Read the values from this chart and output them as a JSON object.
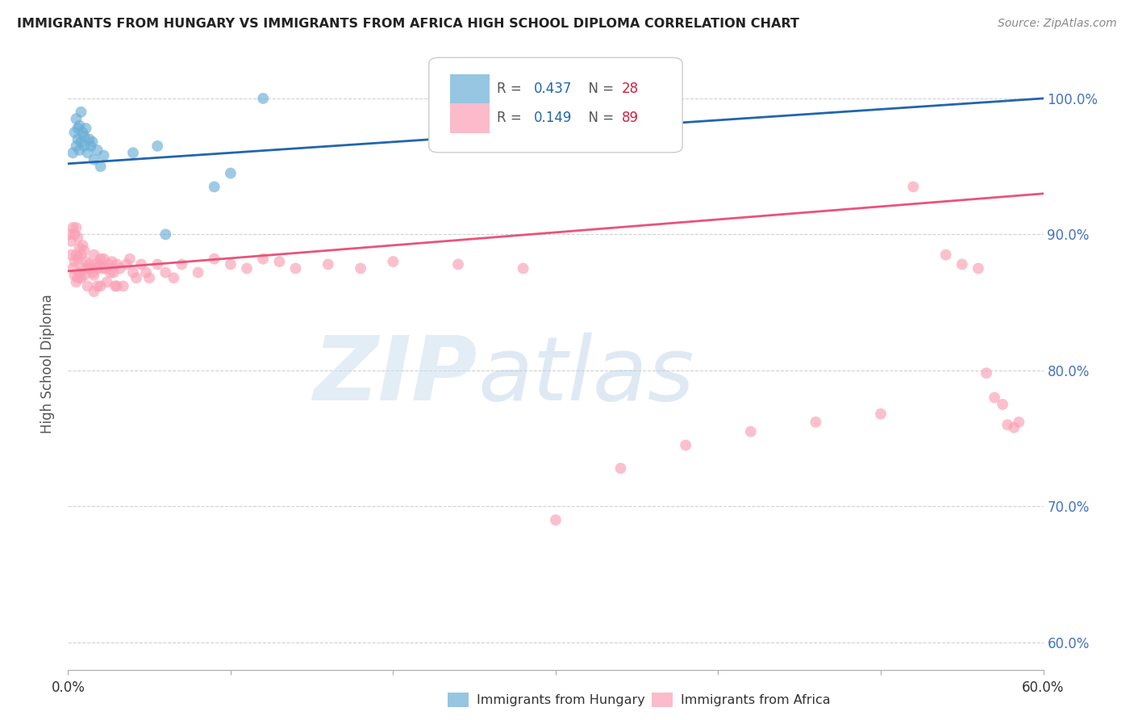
{
  "title": "IMMIGRANTS FROM HUNGARY VS IMMIGRANTS FROM AFRICA HIGH SCHOOL DIPLOMA CORRELATION CHART",
  "source": "Source: ZipAtlas.com",
  "ylabel": "High School Diploma",
  "ytick_labels": [
    "100.0%",
    "90.0%",
    "80.0%",
    "70.0%",
    "60.0%"
  ],
  "ytick_values": [
    1.0,
    0.9,
    0.8,
    0.7,
    0.6
  ],
  "xlim": [
    0.0,
    0.6
  ],
  "ylim": [
    0.58,
    1.03
  ],
  "legend_hungary_r": "0.437",
  "legend_hungary_n": "28",
  "legend_africa_r": "0.149",
  "legend_africa_n": "89",
  "hungary_color": "#6baed6",
  "africa_color": "#fa9fb5",
  "trend_hungary_color": "#2166ac",
  "trend_africa_color": "#e9537a",
  "background_color": "#ffffff",
  "grid_color": "#cccccc",
  "hungary_x": [
    0.003,
    0.004,
    0.005,
    0.005,
    0.006,
    0.006,
    0.007,
    0.007,
    0.008,
    0.008,
    0.009,
    0.01,
    0.01,
    0.011,
    0.012,
    0.013,
    0.014,
    0.015,
    0.016,
    0.018,
    0.02,
    0.022,
    0.04,
    0.055,
    0.06,
    0.09,
    0.1,
    0.12
  ],
  "hungary_y": [
    0.96,
    0.975,
    0.965,
    0.985,
    0.97,
    0.978,
    0.962,
    0.98,
    0.968,
    0.99,
    0.975,
    0.972,
    0.965,
    0.978,
    0.96,
    0.97,
    0.965,
    0.968,
    0.955,
    0.962,
    0.95,
    0.958,
    0.96,
    0.965,
    0.9,
    0.935,
    0.945,
    1.0
  ],
  "africa_x": [
    0.001,
    0.002,
    0.002,
    0.003,
    0.003,
    0.004,
    0.004,
    0.004,
    0.005,
    0.005,
    0.005,
    0.006,
    0.006,
    0.006,
    0.007,
    0.007,
    0.008,
    0.008,
    0.009,
    0.009,
    0.01,
    0.01,
    0.011,
    0.012,
    0.012,
    0.013,
    0.014,
    0.015,
    0.016,
    0.016,
    0.016,
    0.017,
    0.018,
    0.018,
    0.019,
    0.02,
    0.02,
    0.021,
    0.022,
    0.023,
    0.024,
    0.025,
    0.026,
    0.027,
    0.028,
    0.029,
    0.03,
    0.03,
    0.032,
    0.034,
    0.036,
    0.038,
    0.04,
    0.042,
    0.045,
    0.048,
    0.05,
    0.055,
    0.06,
    0.065,
    0.07,
    0.08,
    0.09,
    0.1,
    0.11,
    0.12,
    0.13,
    0.14,
    0.16,
    0.18,
    0.2,
    0.24,
    0.28,
    0.3,
    0.34,
    0.38,
    0.42,
    0.46,
    0.5,
    0.52,
    0.54,
    0.55,
    0.56,
    0.565,
    0.57,
    0.575,
    0.578,
    0.582,
    0.585
  ],
  "africa_y": [
    0.9,
    0.895,
    0.885,
    0.905,
    0.875,
    0.9,
    0.88,
    0.87,
    0.905,
    0.885,
    0.865,
    0.898,
    0.882,
    0.868,
    0.89,
    0.872,
    0.885,
    0.868,
    0.892,
    0.875,
    0.888,
    0.87,
    0.88,
    0.875,
    0.862,
    0.878,
    0.875,
    0.872,
    0.885,
    0.87,
    0.858,
    0.878,
    0.875,
    0.862,
    0.878,
    0.882,
    0.862,
    0.875,
    0.882,
    0.875,
    0.865,
    0.878,
    0.872,
    0.88,
    0.872,
    0.862,
    0.878,
    0.862,
    0.875,
    0.862,
    0.878,
    0.882,
    0.872,
    0.868,
    0.878,
    0.872,
    0.868,
    0.878,
    0.872,
    0.868,
    0.878,
    0.872,
    0.882,
    0.878,
    0.875,
    0.882,
    0.88,
    0.875,
    0.878,
    0.875,
    0.88,
    0.878,
    0.875,
    0.69,
    0.728,
    0.745,
    0.755,
    0.762,
    0.768,
    0.935,
    0.885,
    0.878,
    0.875,
    0.798,
    0.78,
    0.775,
    0.76,
    0.758,
    0.762
  ]
}
